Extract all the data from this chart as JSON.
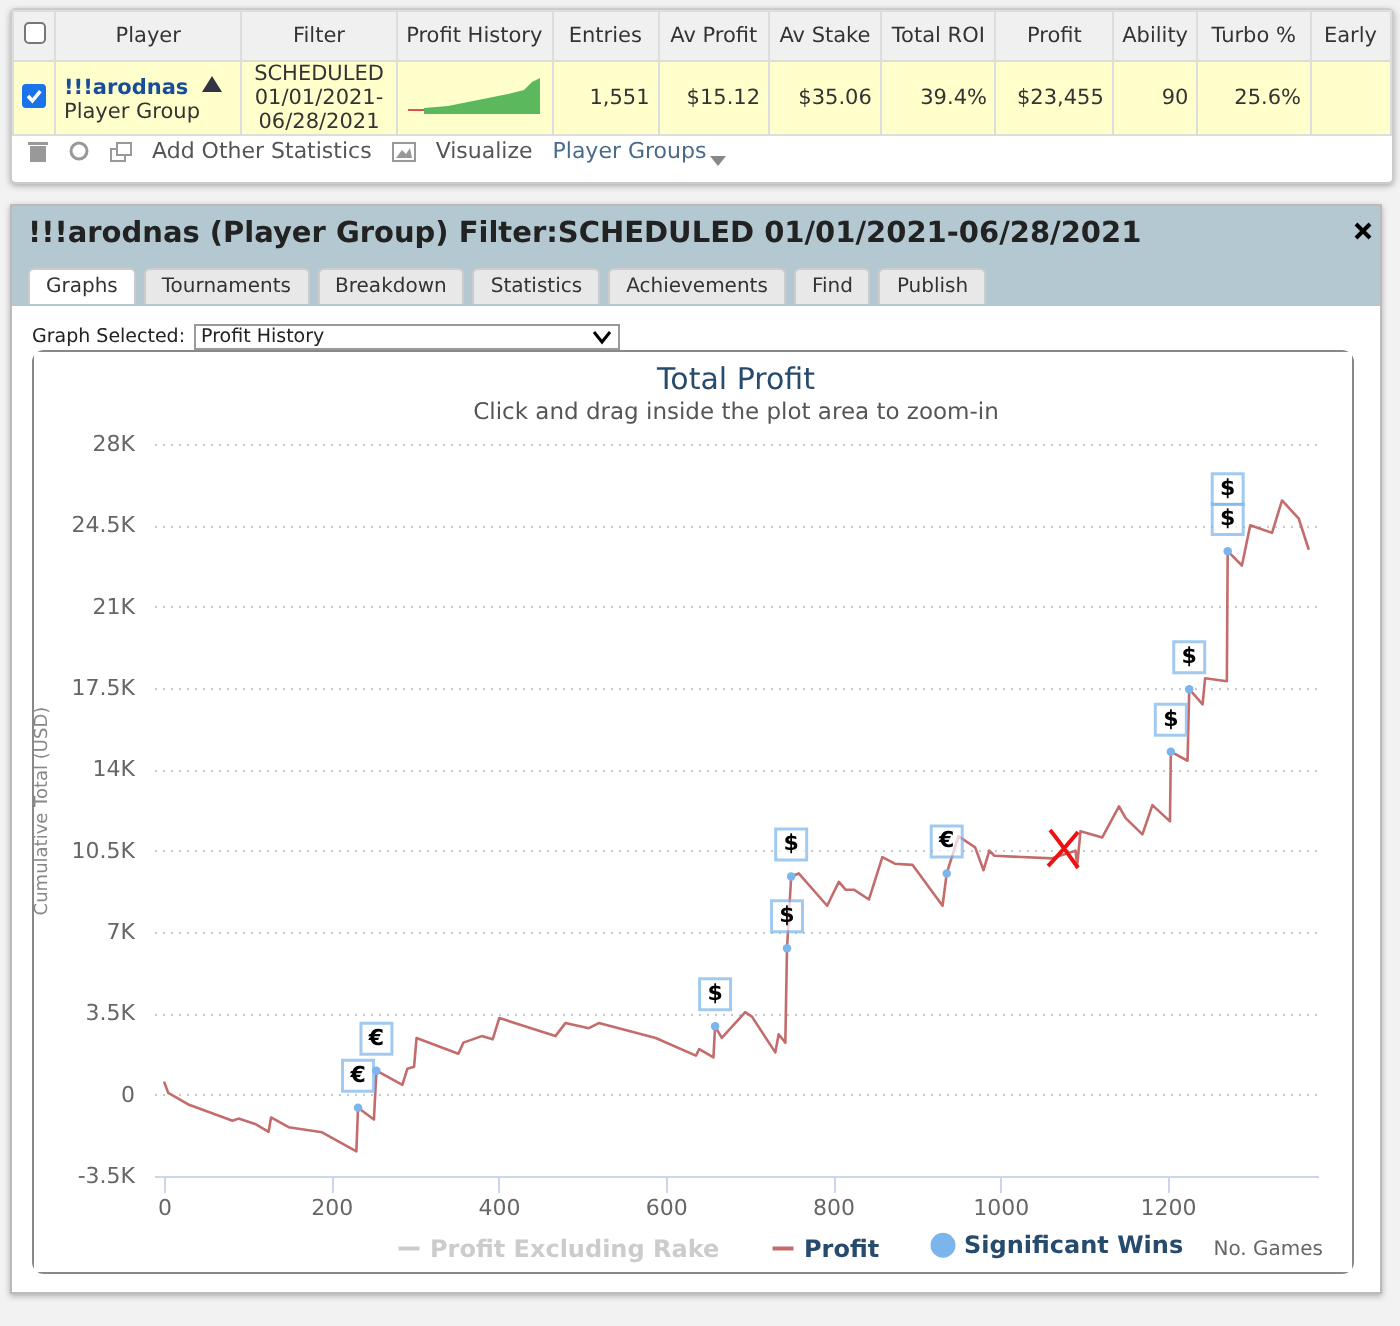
{
  "chart_data": [
    {
      "type": "other",
      "title": "!!!arodnas (Player Group) Filter:SCHEDULED 01/01/2021-06/28/2021",
      "categories": [
        "Player",
        "Filter",
        "Profit History",
        "Entries",
        "Av Profit",
        "Av Stake",
        "Total ROI",
        "Profit",
        "Ability",
        "Turbo %",
        "Early"
      ],
      "value_labels": [
        "!!!arodnas\nPlayer Group",
        "SCHEDULED 01/01/2021-06/28/2021",
        null,
        "1,551",
        "$15.12",
        "$35.06",
        "39.4%",
        "$23,455",
        "90",
        "25.6%",
        null
      ],
      "annotations": [
        "Add Other Statistics",
        "Visualize",
        "Player Groups",
        "Graphs",
        "Tournaments",
        "Breakdown",
        "Statistics",
        "Achievements",
        "Find",
        "Publish",
        "Graph Selected:",
        "Profit History"
      ]
    },
    {
      "type": "line",
      "title": "Total Profit",
      "subtitle": "Click and drag inside the plot area to zoom-in",
      "xlabel": "No. Games",
      "ylabel": "Cumulative Total (USD)",
      "series": [
        {
          "name": "Profit Excluding Rake",
          "color": "#cccccc"
        },
        {
          "name": "Profit",
          "color": "#c46c6c",
          "x": [
            0,
            5,
            29,
            82,
            89,
            109,
            125,
            128,
            149,
            189,
            230,
            232,
            251,
            254,
            285,
            291,
            299,
            302,
            352,
            358,
            380,
            393,
            401,
            468,
            480,
            508,
            520,
            588,
            636,
            640,
            657,
            659,
            667,
            695,
            703,
            731,
            735,
            743,
            745,
            750,
            759,
            793,
            807,
            815,
            825,
            843,
            859,
            874,
            895,
            931,
            936,
            950,
            970,
            980,
            987,
            993,
            1062,
            1090,
            1092,
            1096,
            1122,
            1142,
            1150,
            1170,
            1182,
            1203,
            1204,
            1224,
            1226,
            1242,
            1245,
            1271,
            1272,
            1289,
            1299,
            1325,
            1337,
            1357,
            1369
          ],
          "values": [
            560,
            80,
            -420,
            -1120,
            -1030,
            -1260,
            -1600,
            -980,
            -1400,
            -1620,
            -2440,
            -560,
            -1070,
            1030,
            420,
            1120,
            1200,
            2440,
            1760,
            2240,
            2520,
            2380,
            3300,
            2520,
            3080,
            2860,
            3080,
            2440,
            1680,
            1960,
            1600,
            2940,
            2440,
            3550,
            3360,
            1820,
            2600,
            2240,
            6300,
            9390,
            9520,
            8130,
            9160,
            8820,
            8820,
            8400,
            10220,
            9940,
            9890,
            8130,
            9520,
            11120,
            10640,
            9660,
            10500,
            10280,
            10170,
            10500,
            9860,
            11340,
            11070,
            12410,
            11900,
            11200,
            12460,
            11760,
            14760,
            14370,
            17450,
            16800,
            17920,
            17790,
            23390,
            22770,
            24500,
            24180,
            25570,
            24790,
            23450
          ]
        },
        {
          "name": "Significant Wins",
          "type": "scatter",
          "color": "#7cb5ec",
          "marker": "circle",
          "x": [
            232,
            254,
            659,
            745,
            750,
            936,
            1204,
            1226,
            1272
          ],
          "values": [
            -560,
            1030,
            2940,
            6300,
            9390,
            9520,
            14760,
            17450,
            23390
          ]
        }
      ],
      "annotations": [
        {
          "text": "€",
          "x": 232,
          "y": -560
        },
        {
          "text": "€",
          "x": 254,
          "y": 1030
        },
        {
          "text": "$",
          "x": 659,
          "y": 2940
        },
        {
          "text": "$",
          "x": 745,
          "y": 6300
        },
        {
          "text": "$",
          "x": 750,
          "y": 9390
        },
        {
          "text": "€",
          "x": 936,
          "y": 9520
        },
        {
          "text": "$",
          "x": 1204,
          "y": 14760
        },
        {
          "text": "$",
          "x": 1226,
          "y": 17450
        },
        {
          "text": "$",
          "x": 1272,
          "y": 23390
        },
        {
          "text": "$",
          "x": 1272,
          "y": 23390
        }
      ],
      "xlim": [
        -12,
        1380
      ],
      "xticks": [
        0,
        200,
        400,
        600,
        800,
        1000,
        1200
      ],
      "ylim": [
        -3500,
        28000
      ],
      "yticks": [
        {
          "value": -3500,
          "label": "-3.5K"
        },
        0,
        {
          "value": 3500,
          "label": "3.5K"
        },
        {
          "value": 7000,
          "label": "7K"
        },
        {
          "value": 10500,
          "label": "10.5K"
        },
        {
          "value": 14000,
          "label": "14K"
        },
        {
          "value": 17500,
          "label": "17.5K"
        },
        {
          "value": 21000,
          "label": "21K"
        },
        {
          "value": 24500,
          "label": "24.5K"
        },
        {
          "value": 28000,
          "label": "28K"
        }
      ],
      "grid": "y",
      "legend": "bottom",
      "marker": "none",
      "line_style": "solid"
    }
  ]
}
